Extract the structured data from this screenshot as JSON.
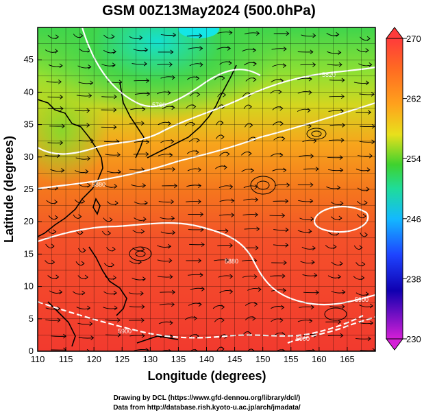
{
  "title": "GSM 00Z13May2024 (500.0hPa)",
  "xlabel": "Longitude (degrees)",
  "ylabel": "Latitude  (degrees)",
  "x_ticks": [
    "110",
    "115",
    "120",
    "125",
    "130",
    "135",
    "140",
    "145",
    "150",
    "155",
    "160",
    "165"
  ],
  "y_ticks": [
    "0",
    "5",
    "10",
    "15",
    "20",
    "25",
    "30",
    "35",
    "40",
    "45"
  ],
  "colorbar": {
    "ticks": [
      "270",
      "262",
      "254",
      "246",
      "238",
      "230"
    ],
    "colors": [
      "#ff3b3b",
      "#ff8a1e",
      "#ffd21a",
      "#d7f021",
      "#3fd22e",
      "#1fdca0",
      "#13b9ff",
      "#1e44ff",
      "#1000b0",
      "#d41fd6"
    ]
  },
  "contour_labels": [
    "5760",
    "5880",
    "5820",
    "5880",
    "5900",
    "5900",
    "5900"
  ],
  "credits": {
    "line1": "Drawing by DCL (https://www.gfd-dennou.org/library/dcl/)",
    "line2": "Data from http://database.rish.kyoto-u.ac.jp/arch/jmadata/"
  },
  "colors": {
    "accent": "#ff0000",
    "coast": "#000000",
    "contour": "#ffffff"
  }
}
